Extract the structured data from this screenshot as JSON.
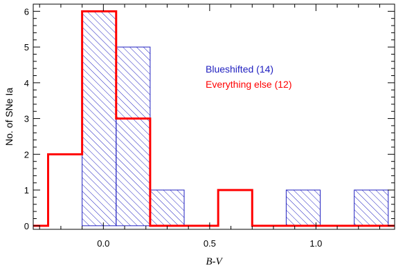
{
  "chart_data": {
    "type": "bar",
    "xlabel": "B-V",
    "ylabel": "No. of SNe Ia",
    "xlim": [
      -0.33,
      1.37
    ],
    "ylim": [
      -0.1,
      6.2
    ],
    "x_ticks": [
      0.0,
      0.5,
      1.0
    ],
    "x_tick_labels": [
      "0.0",
      "0.5",
      "1.0"
    ],
    "y_ticks": [
      0,
      1,
      2,
      3,
      4,
      5,
      6
    ],
    "y_tick_labels": [
      "0",
      "1",
      "2",
      "3",
      "4",
      "5",
      "6"
    ],
    "bin_edges": [
      -0.42,
      -0.26,
      -0.1,
      0.06,
      0.22,
      0.38,
      0.54,
      0.7,
      0.86,
      1.02,
      1.18,
      1.34,
      1.5
    ],
    "series": [
      {
        "name": "Blueshifted (14)",
        "style": "hatched",
        "color": "#2020c0",
        "values": [
          0,
          0,
          6,
          5,
          1,
          0,
          0,
          0,
          1,
          0,
          1,
          0
        ]
      },
      {
        "name": "Everything else (12)",
        "style": "step",
        "color": "#ff0000",
        "values": [
          0,
          2,
          6,
          3,
          0,
          0,
          1,
          0,
          0,
          0,
          0,
          0
        ]
      }
    ],
    "legend": "upper-middle",
    "grid": false
  }
}
